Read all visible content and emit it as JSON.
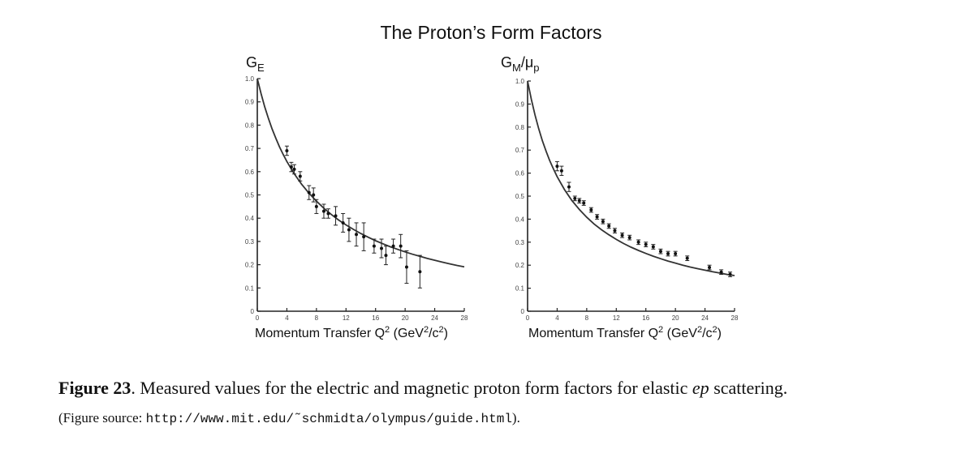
{
  "figure": {
    "title": "The Proton’s Form Factors",
    "caption_label": "Figure 23",
    "caption_pre": ". Measured values for the electric and magnetic proton form factors for elastic ",
    "caption_em": "ep",
    "caption_post": " scattering.",
    "source_pre": "(Figure source: ",
    "source_url": "http://www.mit.edu/˜schmidta/olympus/guide.html",
    "source_post": ")."
  },
  "chart_data": [
    {
      "type": "scatter",
      "ylabel_main": "G",
      "ylabel_sub": "E",
      "xlabel": "Momentum Transfer Q",
      "xlabel_sup": "2",
      "xlabel_unit_a": " (GeV",
      "xlabel_unit_sup1": "2",
      "xlabel_unit_b": "/c",
      "xlabel_unit_sup2": "2",
      "xlabel_unit_c": ")",
      "xlim": [
        0,
        28
      ],
      "ylim": [
        0,
        1.0
      ],
      "xticks": [
        0,
        4,
        8,
        12,
        16,
        20,
        24,
        28
      ],
      "xtick_labels": [
        "0",
        "4",
        "8",
        "12",
        "16",
        "20",
        "24",
        "28"
      ],
      "yticks": [
        0,
        0.1,
        0.2,
        0.3,
        0.4,
        0.5,
        0.6,
        0.7,
        0.8,
        0.9,
        1.0
      ],
      "ytick_labels": [
        "0",
        "0.1",
        "0.2",
        "0.3",
        "0.4",
        "0.5",
        "0.6",
        "0.7",
        "0.8",
        "0.9",
        "1.0"
      ],
      "grid": false,
      "curve_x": [
        0,
        0.5,
        1,
        1.5,
        2,
        2.5,
        3,
        3.5,
        4,
        5,
        6,
        7,
        8,
        9,
        10,
        11,
        12,
        13,
        14,
        15,
        16,
        17,
        18,
        19,
        20,
        21,
        22,
        23,
        24,
        25,
        26,
        27,
        28
      ],
      "curve_y": [
        1.0,
        0.936,
        0.879,
        0.829,
        0.784,
        0.744,
        0.707,
        0.674,
        0.644,
        0.591,
        0.546,
        0.507,
        0.473,
        0.443,
        0.416,
        0.392,
        0.371,
        0.352,
        0.334,
        0.318,
        0.303,
        0.29,
        0.277,
        0.266,
        0.255,
        0.245,
        0.236,
        0.227,
        0.219,
        0.211,
        0.204,
        0.197,
        0.191
      ],
      "points": [
        {
          "x": 4.0,
          "y": 0.69,
          "err": 0.02
        },
        {
          "x": 4.6,
          "y": 0.62,
          "err": 0.02
        },
        {
          "x": 5.0,
          "y": 0.61,
          "err": 0.02
        },
        {
          "x": 5.8,
          "y": 0.58,
          "err": 0.02
        },
        {
          "x": 7.0,
          "y": 0.51,
          "err": 0.03
        },
        {
          "x": 7.6,
          "y": 0.5,
          "err": 0.03
        },
        {
          "x": 8.0,
          "y": 0.45,
          "err": 0.03
        },
        {
          "x": 9.0,
          "y": 0.43,
          "err": 0.03
        },
        {
          "x": 9.6,
          "y": 0.42,
          "err": 0.02
        },
        {
          "x": 10.6,
          "y": 0.41,
          "err": 0.04
        },
        {
          "x": 11.6,
          "y": 0.38,
          "err": 0.04
        },
        {
          "x": 12.4,
          "y": 0.35,
          "err": 0.05
        },
        {
          "x": 13.4,
          "y": 0.33,
          "err": 0.05
        },
        {
          "x": 14.4,
          "y": 0.32,
          "err": 0.06
        },
        {
          "x": 15.8,
          "y": 0.28,
          "err": 0.03
        },
        {
          "x": 16.8,
          "y": 0.27,
          "err": 0.04
        },
        {
          "x": 17.4,
          "y": 0.24,
          "err": 0.04
        },
        {
          "x": 18.4,
          "y": 0.28,
          "err": 0.03
        },
        {
          "x": 19.4,
          "y": 0.28,
          "err": 0.05
        },
        {
          "x": 20.2,
          "y": 0.19,
          "err": 0.07
        },
        {
          "x": 22.0,
          "y": 0.17,
          "err": 0.07
        }
      ]
    },
    {
      "type": "scatter",
      "ylabel_main": "G",
      "ylabel_sub": "M",
      "ylabel_mid": "/μ",
      "ylabel_sub2": "p",
      "xlabel": "Momentum Transfer Q",
      "xlabel_sup": "2",
      "xlabel_unit_a": " (GeV",
      "xlabel_unit_sup1": "2",
      "xlabel_unit_b": "/c",
      "xlabel_unit_sup2": "2",
      "xlabel_unit_c": ")",
      "xlim": [
        0,
        28
      ],
      "ylim": [
        0,
        1.0
      ],
      "xticks": [
        0,
        4,
        8,
        12,
        16,
        20,
        24,
        28
      ],
      "xtick_labels": [
        "0",
        "4",
        "8",
        "12",
        "16",
        "20",
        "24",
        "28"
      ],
      "yticks": [
        0,
        0.1,
        0.2,
        0.3,
        0.4,
        0.5,
        0.6,
        0.7,
        0.8,
        0.9,
        1.0
      ],
      "ytick_labels": [
        "0",
        "0.1",
        "0.2",
        "0.3",
        "0.4",
        "0.5",
        "0.6",
        "0.7",
        "0.8",
        "0.9",
        "1.0"
      ],
      "grid": false,
      "curve_x": [
        0,
        0.5,
        1,
        1.5,
        2,
        2.5,
        3,
        3.5,
        4,
        5,
        6,
        7,
        8,
        9,
        10,
        11,
        12,
        13,
        14,
        15,
        16,
        17,
        18,
        19,
        20,
        21,
        22,
        23,
        24,
        25,
        26,
        27,
        28
      ],
      "curve_y": [
        1.0,
        0.921,
        0.853,
        0.793,
        0.741,
        0.695,
        0.654,
        0.618,
        0.585,
        0.528,
        0.481,
        0.442,
        0.408,
        0.379,
        0.354,
        0.332,
        0.312,
        0.294,
        0.278,
        0.264,
        0.251,
        0.239,
        0.228,
        0.218,
        0.209,
        0.2,
        0.192,
        0.185,
        0.178,
        0.172,
        0.166,
        0.16,
        0.155
      ],
      "points": [
        {
          "x": 4.0,
          "y": 0.63,
          "err": 0.02
        },
        {
          "x": 4.6,
          "y": 0.61,
          "err": 0.02
        },
        {
          "x": 5.6,
          "y": 0.54,
          "err": 0.02
        },
        {
          "x": 6.4,
          "y": 0.49,
          "err": 0.01
        },
        {
          "x": 7.0,
          "y": 0.48,
          "err": 0.01
        },
        {
          "x": 7.6,
          "y": 0.47,
          "err": 0.01
        },
        {
          "x": 8.6,
          "y": 0.44,
          "err": 0.01
        },
        {
          "x": 9.4,
          "y": 0.41,
          "err": 0.01
        },
        {
          "x": 10.2,
          "y": 0.39,
          "err": 0.01
        },
        {
          "x": 11.0,
          "y": 0.37,
          "err": 0.01
        },
        {
          "x": 11.8,
          "y": 0.35,
          "err": 0.01
        },
        {
          "x": 12.8,
          "y": 0.33,
          "err": 0.01
        },
        {
          "x": 13.8,
          "y": 0.32,
          "err": 0.01
        },
        {
          "x": 15.0,
          "y": 0.3,
          "err": 0.01
        },
        {
          "x": 16.0,
          "y": 0.29,
          "err": 0.01
        },
        {
          "x": 17.0,
          "y": 0.28,
          "err": 0.01
        },
        {
          "x": 18.0,
          "y": 0.26,
          "err": 0.01
        },
        {
          "x": 19.0,
          "y": 0.25,
          "err": 0.01
        },
        {
          "x": 20.0,
          "y": 0.25,
          "err": 0.01
        },
        {
          "x": 21.6,
          "y": 0.23,
          "err": 0.01
        },
        {
          "x": 24.6,
          "y": 0.19,
          "err": 0.01
        },
        {
          "x": 26.2,
          "y": 0.17,
          "err": 0.01
        },
        {
          "x": 27.4,
          "y": 0.16,
          "err": 0.01
        }
      ]
    }
  ]
}
